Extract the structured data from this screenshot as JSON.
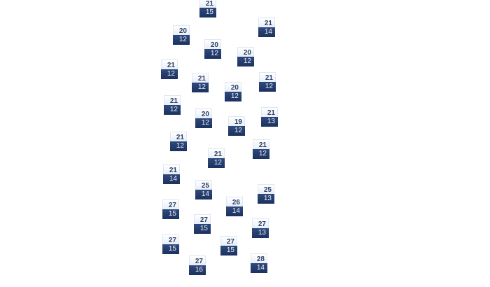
{
  "map": {
    "markers": [
      {
        "high": "21",
        "low": "15"
      },
      {
        "high": "21",
        "low": "14"
      },
      {
        "high": "20",
        "low": "12"
      },
      {
        "high": "20",
        "low": "12"
      },
      {
        "high": "20",
        "low": "12"
      },
      {
        "high": "21",
        "low": "12"
      },
      {
        "high": "21",
        "low": "12"
      },
      {
        "high": "21",
        "low": "12"
      },
      {
        "high": "20",
        "low": "12"
      },
      {
        "high": "21",
        "low": "12"
      },
      {
        "high": "20",
        "low": "12"
      },
      {
        "high": "21",
        "low": "13"
      },
      {
        "high": "19",
        "low": "12"
      },
      {
        "high": "21",
        "low": "12"
      },
      {
        "high": "21",
        "low": "12"
      },
      {
        "high": "21",
        "low": "12"
      },
      {
        "high": "21",
        "low": "14"
      },
      {
        "high": "25",
        "low": "14"
      },
      {
        "high": "25",
        "low": "13"
      },
      {
        "high": "26",
        "low": "14"
      },
      {
        "high": "27",
        "low": "15"
      },
      {
        "high": "27",
        "low": "15"
      },
      {
        "high": "27",
        "low": "13"
      },
      {
        "high": "27",
        "low": "15"
      },
      {
        "high": "27",
        "low": "15"
      },
      {
        "high": "27",
        "low": "16"
      },
      {
        "high": "28",
        "low": "14"
      }
    ],
    "colors": {
      "low_bg": "#1c3160",
      "high_text": "#2b3f66"
    }
  }
}
